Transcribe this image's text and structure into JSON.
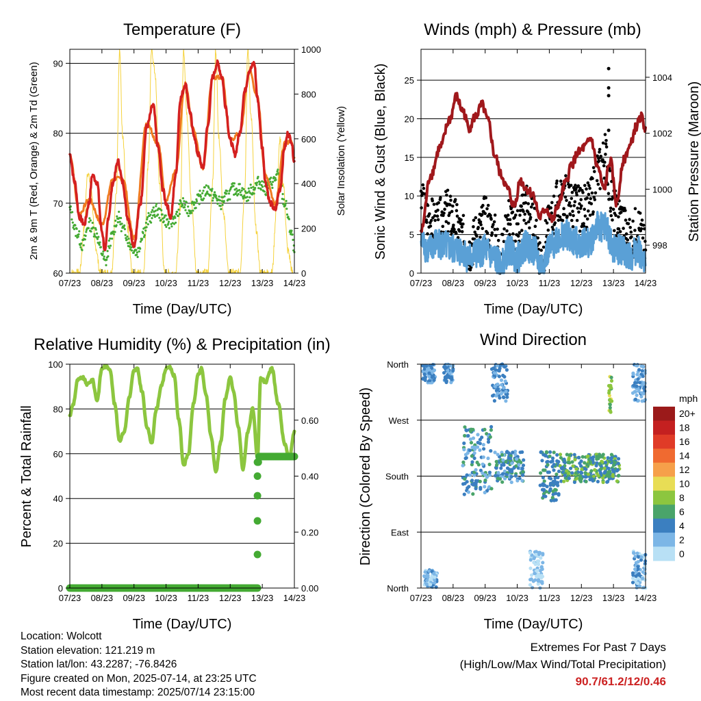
{
  "x_ticks": [
    "07/23",
    "08/23",
    "09/23",
    "10/23",
    "11/23",
    "12/23",
    "13/23",
    "14/23"
  ],
  "colors": {
    "temp_red": "#d42020",
    "temp_orange": "#f07b20",
    "dewpoint_green": "#44aa33",
    "insolation_yellow": "#f5d23c",
    "wind_blue": "#5aa0d6",
    "gust_black": "#000000",
    "pressure_maroon": "#a0181c",
    "rh_lightgreen": "#8cc63f",
    "precip_green": "#44aa33"
  },
  "chart_data": [
    {
      "type": "line",
      "title": "Temperature (F)",
      "xlabel": "Time (Day/UTC)",
      "ylabel": "2m & 9m T (Red, Orange) & 2m Td (Green)",
      "y2label": "Solar Insolation (Yellow)",
      "x_range_days": [
        0,
        7
      ],
      "ylim": [
        60,
        92
      ],
      "y_ticks": [
        60,
        70,
        80,
        90
      ],
      "y2lim": [
        0,
        1000
      ],
      "y2_ticks": [
        0,
        200,
        400,
        600,
        800,
        1000
      ],
      "grid": true,
      "series": [
        {
          "name": "2m T",
          "color": "#d42020",
          "x": [
            0,
            0.15,
            0.3,
            0.45,
            0.6,
            0.7,
            0.85,
            1.0,
            1.1,
            1.2,
            1.35,
            1.5,
            1.65,
            1.8,
            2.0,
            2.2,
            2.4,
            2.6,
            2.75,
            2.9,
            3.0,
            3.15,
            3.3,
            3.45,
            3.6,
            3.75,
            3.85,
            4.0,
            4.15,
            4.3,
            4.45,
            4.6,
            4.75,
            4.85,
            5.0,
            5.15,
            5.3,
            5.45,
            5.6,
            5.75,
            5.85,
            6.0,
            6.1,
            6.25,
            6.4,
            6.55,
            6.7,
            6.8,
            6.9,
            7.0
          ],
          "values": [
            77,
            73,
            68,
            67,
            70,
            74,
            73,
            66,
            63,
            68,
            73,
            76,
            73,
            68,
            64,
            70,
            81,
            84,
            78,
            72,
            70,
            68,
            74,
            85,
            87,
            83,
            80,
            77,
            75,
            81,
            88,
            90,
            88,
            84,
            79,
            77,
            80,
            86,
            89,
            90,
            85,
            78,
            73,
            70,
            69,
            72,
            78,
            80,
            79,
            76
          ]
        },
        {
          "name": "9m T",
          "color": "#f07b20",
          "x": [
            0,
            0.3,
            0.6,
            1.0,
            1.35,
            1.65,
            2.0,
            2.4,
            2.75,
            3.0,
            3.3,
            3.6,
            3.85,
            4.15,
            4.45,
            4.75,
            5.0,
            5.3,
            5.6,
            5.85,
            6.1,
            6.4,
            6.7,
            6.9,
            7.0
          ],
          "values": [
            77,
            68.5,
            70.5,
            67,
            73.5,
            73.5,
            65,
            81.5,
            78.5,
            70.5,
            74.5,
            87,
            80.5,
            75,
            88,
            88,
            79,
            80,
            89,
            85,
            74,
            70,
            78.5,
            79,
            76.5
          ]
        },
        {
          "name": "2m Td",
          "color": "#44aa33",
          "x": [
            0,
            0.2,
            0.4,
            0.6,
            0.8,
            1.0,
            1.1,
            1.3,
            1.5,
            1.7,
            1.9,
            2.1,
            2.3,
            2.5,
            2.7,
            2.9,
            3.1,
            3.3,
            3.5,
            3.7,
            3.9,
            4.1,
            4.3,
            4.5,
            4.7,
            4.9,
            5.1,
            5.3,
            5.5,
            5.7,
            5.9,
            6.1,
            6.3,
            6.5,
            6.7,
            6.9,
            7.0
          ],
          "values": [
            69,
            66,
            64,
            67,
            66,
            63,
            61.5,
            65,
            68,
            66,
            64,
            63,
            66,
            68,
            69,
            68,
            67,
            68,
            70,
            69,
            70,
            71,
            72,
            71,
            70,
            71,
            72,
            72,
            71,
            72,
            73,
            72,
            73,
            74,
            70,
            66,
            63
          ]
        },
        {
          "name": "Solar Insolation",
          "color": "#f5d23c",
          "axis": "y2",
          "x": [
            0,
            0.3,
            0.45,
            0.55,
            0.65,
            0.8,
            0.95,
            1.3,
            1.45,
            1.55,
            1.65,
            1.8,
            1.95,
            2.3,
            2.45,
            2.55,
            2.65,
            2.8,
            2.95,
            3.3,
            3.45,
            3.55,
            3.65,
            3.8,
            3.95,
            4.3,
            4.45,
            4.55,
            4.65,
            4.8,
            4.95,
            5.3,
            5.45,
            5.55,
            5.65,
            5.8,
            5.95,
            6.3,
            6.45,
            6.55,
            6.65,
            6.8,
            6.95
          ],
          "values": [
            0,
            0,
            200,
            450,
            400,
            120,
            0,
            0,
            350,
            1000,
            600,
            200,
            0,
            0,
            500,
            1000,
            900,
            400,
            0,
            0,
            300,
            1000,
            700,
            300,
            0,
            0,
            400,
            1000,
            600,
            250,
            0,
            0,
            350,
            1000,
            700,
            200,
            0,
            0,
            300,
            600,
            400,
            100,
            0
          ]
        }
      ]
    },
    {
      "type": "line",
      "title": "Winds (mph) & Pressure (mb)",
      "xlabel": "Time (Day/UTC)",
      "ylabel": "Sonic Wind & Gust (Blue, Black)",
      "y2label": "Station Pressure (Maroon)",
      "x_range_days": [
        0,
        7
      ],
      "ylim": [
        0,
        29
      ],
      "y_ticks": [
        0,
        5,
        10,
        15,
        20,
        25
      ],
      "y2lim": [
        997,
        1005
      ],
      "y2_ticks": [
        998,
        1000,
        1002,
        1004
      ],
      "grid": true,
      "series": [
        {
          "name": "Sonic Wind",
          "color": "#5aa0d6",
          "x": [
            0,
            0.25,
            0.5,
            0.75,
            1.0,
            1.25,
            1.5,
            1.75,
            2.0,
            2.25,
            2.5,
            2.75,
            3.0,
            3.25,
            3.5,
            3.75,
            4.0,
            4.25,
            4.5,
            4.75,
            5.0,
            5.25,
            5.5,
            5.75,
            6.0,
            6.25,
            6.5,
            6.75,
            7.0
          ],
          "values": [
            4,
            3,
            4,
            3.5,
            3,
            3,
            2,
            2.5,
            3,
            2,
            1,
            3,
            2,
            3.5,
            3,
            1,
            3,
            4.5,
            5,
            4,
            4,
            4,
            6,
            6,
            3,
            3,
            2,
            3,
            1
          ]
        },
        {
          "name": "Gust",
          "color": "#000000",
          "x": [
            0,
            0.25,
            0.5,
            0.75,
            1.0,
            1.25,
            1.5,
            1.75,
            2.0,
            2.25,
            2.5,
            2.75,
            3.0,
            3.25,
            3.5,
            3.75,
            4.0,
            4.25,
            4.5,
            4.75,
            5.0,
            5.25,
            5.5,
            5.75,
            6.0,
            6.25,
            6.5,
            6.75,
            7.0
          ],
          "values": [
            9,
            7,
            6,
            8,
            7,
            5,
            3,
            5,
            7,
            5,
            2,
            7,
            6,
            9,
            7,
            2,
            6,
            9,
            10,
            9,
            8,
            9,
            13,
            15,
            8,
            7,
            4,
            6,
            3
          ]
        },
        {
          "name": "Station Pressure",
          "color": "#a0181c",
          "axis": "y2",
          "x": [
            0,
            0.3,
            0.6,
            0.9,
            1.1,
            1.3,
            1.5,
            1.7,
            1.9,
            2.1,
            2.3,
            2.5,
            2.7,
            2.9,
            3.1,
            3.3,
            3.5,
            3.7,
            3.9,
            4.1,
            4.3,
            4.5,
            4.7,
            4.9,
            5.1,
            5.3,
            5.5,
            5.7,
            5.9,
            6.1,
            6.3,
            6.5,
            6.7,
            6.85,
            7.0
          ],
          "values": [
            998.5,
            1000.5,
            1001.5,
            1002.5,
            1003.3,
            1002.8,
            1002.2,
            1002.6,
            1003.0,
            1002.4,
            1001.2,
            1000.5,
            1000.0,
            999.4,
            1000.3,
            1000.0,
            999.8,
            999.0,
            999.3,
            998.9,
            999.5,
            1000.2,
            1000.9,
            1001.3,
            1001.5,
            1001.8,
            1000.8,
            1000.0,
            1001.0,
            999.5,
            1001.0,
            1001.5,
            1002.2,
            1002.6,
            1002.2
          ]
        },
        {
          "name": "Gust outliers",
          "color": "#000000",
          "markers_only": true,
          "x": [
            5.85,
            5.85,
            5.85,
            5.85
          ],
          "values": [
            26.5,
            24,
            23,
            18.5
          ]
        }
      ]
    },
    {
      "type": "line",
      "title": "Relative Humidity (%) & Precipitation (in)",
      "xlabel": "Time (Day/UTC)",
      "ylabel": "Percent & Total Rainfall",
      "x_range_days": [
        0,
        7
      ],
      "ylim": [
        0,
        100
      ],
      "y_ticks": [
        0,
        20,
        40,
        60,
        80,
        100
      ],
      "y2lim": [
        0,
        0.8
      ],
      "y2_ticks": [
        "0.00",
        "0.20",
        "0.40",
        "0.60"
      ],
      "grid": true,
      "series": [
        {
          "name": "Relative Humidity",
          "color": "#8cc63f",
          "x": [
            0,
            0.1,
            0.25,
            0.4,
            0.55,
            0.7,
            0.85,
            1.0,
            1.1,
            1.25,
            1.4,
            1.55,
            1.7,
            1.85,
            2.0,
            2.1,
            2.25,
            2.4,
            2.55,
            2.7,
            2.85,
            3.0,
            3.1,
            3.25,
            3.4,
            3.55,
            3.7,
            3.85,
            4.0,
            4.1,
            4.25,
            4.4,
            4.55,
            4.7,
            4.85,
            5.0,
            5.1,
            5.25,
            5.4,
            5.55,
            5.7,
            5.85,
            5.95,
            6.1,
            6.3,
            6.5,
            6.7,
            6.85,
            7.0
          ],
          "values": [
            77,
            82,
            93,
            94,
            91,
            93,
            84,
            98,
            99,
            98,
            82,
            66,
            70,
            85,
            97,
            98,
            88,
            72,
            65,
            80,
            90,
            98,
            99,
            95,
            75,
            55,
            60,
            82,
            95,
            98,
            86,
            68,
            52,
            65,
            85,
            94,
            88,
            72,
            53,
            70,
            80,
            58,
            94,
            92,
            98,
            82,
            64,
            58,
            70
          ]
        },
        {
          "name": "Total Precipitation",
          "color": "#44aa33",
          "axis": "y2",
          "markers": true,
          "x": [
            0,
            1,
            2,
            3,
            4,
            5,
            5.85,
            5.85,
            5.85,
            5.85,
            5.85,
            5.85,
            5.9,
            6.2,
            6.5,
            6.8,
            7.0
          ],
          "values": [
            0,
            0,
            0,
            0,
            0,
            0,
            0,
            0.12,
            0.24,
            0.33,
            0.4,
            0.45,
            0.47,
            0.47,
            0.47,
            0.47,
            0.47
          ]
        }
      ]
    },
    {
      "type": "scatter",
      "title": "Wind Direction",
      "xlabel": "Time (Day/UTC)",
      "ylabel": "Direction (Colored By Speed)",
      "x_range_days": [
        0,
        7
      ],
      "y_categories": [
        "North",
        "East",
        "South",
        "West",
        "North"
      ],
      "grid": true,
      "colorbar": {
        "title": "mph",
        "labels": [
          "20+",
          "18",
          "16",
          "14",
          "12",
          "10",
          "8",
          "6",
          "4",
          "2",
          "0"
        ],
        "colors": [
          "#9b1a1a",
          "#c42020",
          "#e03b27",
          "#f06a30",
          "#f6a04a",
          "#e8dd55",
          "#8cc63f",
          "#4aa46a",
          "#3b7fc0",
          "#7cb6e6",
          "#b8e0f5"
        ]
      },
      "series": [
        {
          "name": "Wind direction",
          "clusters": [
            {
              "x": [
                0.05,
                0.45
              ],
              "dir": [
                330,
                360
              ],
              "speed": [
                2,
                4
              ]
            },
            {
              "x": [
                0.1,
                0.5
              ],
              "dir": [
                0,
                30
              ],
              "speed": [
                0,
                4
              ]
            },
            {
              "x": [
                0.7,
                1.0
              ],
              "dir": [
                330,
                360
              ],
              "speed": [
                2,
                5
              ]
            },
            {
              "x": [
                1.3,
                2.2
              ],
              "dir": [
                150,
                260
              ],
              "speed": [
                2,
                6
              ]
            },
            {
              "x": [
                2.2,
                2.7
              ],
              "dir": [
                300,
                360
              ],
              "speed": [
                2,
                5
              ]
            },
            {
              "x": [
                2.3,
                3.2
              ],
              "dir": [
                170,
                220
              ],
              "speed": [
                2,
                6
              ]
            },
            {
              "x": [
                3.4,
                3.8
              ],
              "dir": [
                0,
                60
              ],
              "speed": [
                0,
                3
              ]
            },
            {
              "x": [
                3.7,
                4.3
              ],
              "dir": [
                140,
                220
              ],
              "speed": [
                3,
                6
              ]
            },
            {
              "x": [
                4.3,
                6.2
              ],
              "dir": [
                170,
                215
              ],
              "speed": [
                3,
                8
              ]
            },
            {
              "x": [
                5.85,
                5.95
              ],
              "dir": [
                280,
                340
              ],
              "speed": [
                6,
                10
              ]
            },
            {
              "x": [
                6.6,
                7.0
              ],
              "dir": [
                0,
                60
              ],
              "speed": [
                0,
                4
              ]
            },
            {
              "x": [
                6.6,
                7.0
              ],
              "dir": [
                300,
                360
              ],
              "speed": [
                1,
                4
              ]
            }
          ]
        }
      ]
    }
  ],
  "info": {
    "location": "Location: Wolcott",
    "elevation": "Station elevation: 121.219 m",
    "latlon": "Station lat/lon: 43.2287; -76.8426",
    "created": "Figure created on Mon, 2025-07-14, at 23:25 UTC",
    "recent": "Most recent data timestamp: 2025/07/14 23:15:00"
  },
  "extremes": {
    "title": "Extremes For Past 7 Days",
    "subtitle": "(High/Low/Max Wind/Total Precipitation)",
    "values": "90.7/61.2/12/0.46"
  }
}
